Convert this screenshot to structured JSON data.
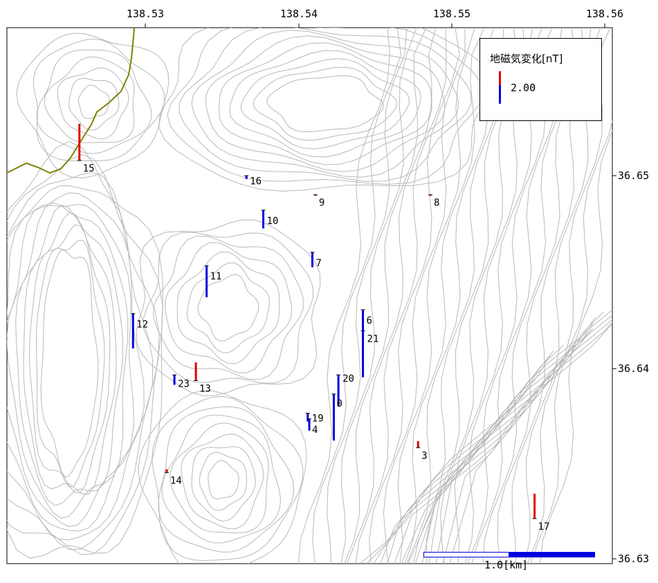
{
  "map": {
    "lon_ticks": [
      "138.53",
      "138.54",
      "138.55",
      "138.56"
    ],
    "lat_ticks": [
      "36.65",
      "36.64",
      "36.63"
    ],
    "colors": {
      "positive": "#e00000",
      "negative": "#0000e0",
      "contour": "#b8b8b8",
      "boundary": "#808000"
    }
  },
  "legend": {
    "title": "地磁気変化[nT]",
    "value": "2.00"
  },
  "scale_bar": {
    "label": "1.0[km]"
  },
  "stations": [
    {
      "id": "15",
      "lon": 138.5257,
      "lat": 36.6508,
      "change": 2.2
    },
    {
      "id": "16",
      "lon": 138.5366,
      "lat": 36.65,
      "change": -0.2
    },
    {
      "id": "10",
      "lon": 138.5377,
      "lat": 36.6482,
      "change": -1.1
    },
    {
      "id": "9",
      "lon": 138.5411,
      "lat": 36.649,
      "change": 0.0
    },
    {
      "id": "8",
      "lon": 138.5486,
      "lat": 36.649,
      "change": 0.0
    },
    {
      "id": "7",
      "lon": 138.5409,
      "lat": 36.646,
      "change": -0.9
    },
    {
      "id": "11",
      "lon": 138.534,
      "lat": 36.6453,
      "change": -1.9
    },
    {
      "id": "12",
      "lon": 138.5292,
      "lat": 36.6428,
      "change": -2.1
    },
    {
      "id": "6",
      "lon": 138.5442,
      "lat": 36.643,
      "change": -2.1
    },
    {
      "id": "21",
      "lon": 138.5442,
      "lat": 36.6419,
      "change": -2.8
    },
    {
      "id": "23",
      "lon": 138.5319,
      "lat": 36.6396,
      "change": -0.6
    },
    {
      "id": "13",
      "lon": 138.5333,
      "lat": 36.6393,
      "change": 1.1
    },
    {
      "id": "20",
      "lon": 138.5426,
      "lat": 36.6396,
      "change": -1.9
    },
    {
      "id": "0",
      "lon": 138.5423,
      "lat": 36.6386,
      "change": -2.8
    },
    {
      "id": "19",
      "lon": 138.5406,
      "lat": 36.6376,
      "change": -0.5
    },
    {
      "id": "4",
      "lon": 138.5407,
      "lat": 36.6373,
      "change": -0.7
    },
    {
      "id": "3",
      "lon": 138.5478,
      "lat": 36.6358,
      "change": 0.4
    },
    {
      "id": "14",
      "lon": 138.5314,
      "lat": 36.6345,
      "change": 0.2
    },
    {
      "id": "17",
      "lon": 138.5554,
      "lat": 36.6321,
      "change": 1.5
    }
  ]
}
